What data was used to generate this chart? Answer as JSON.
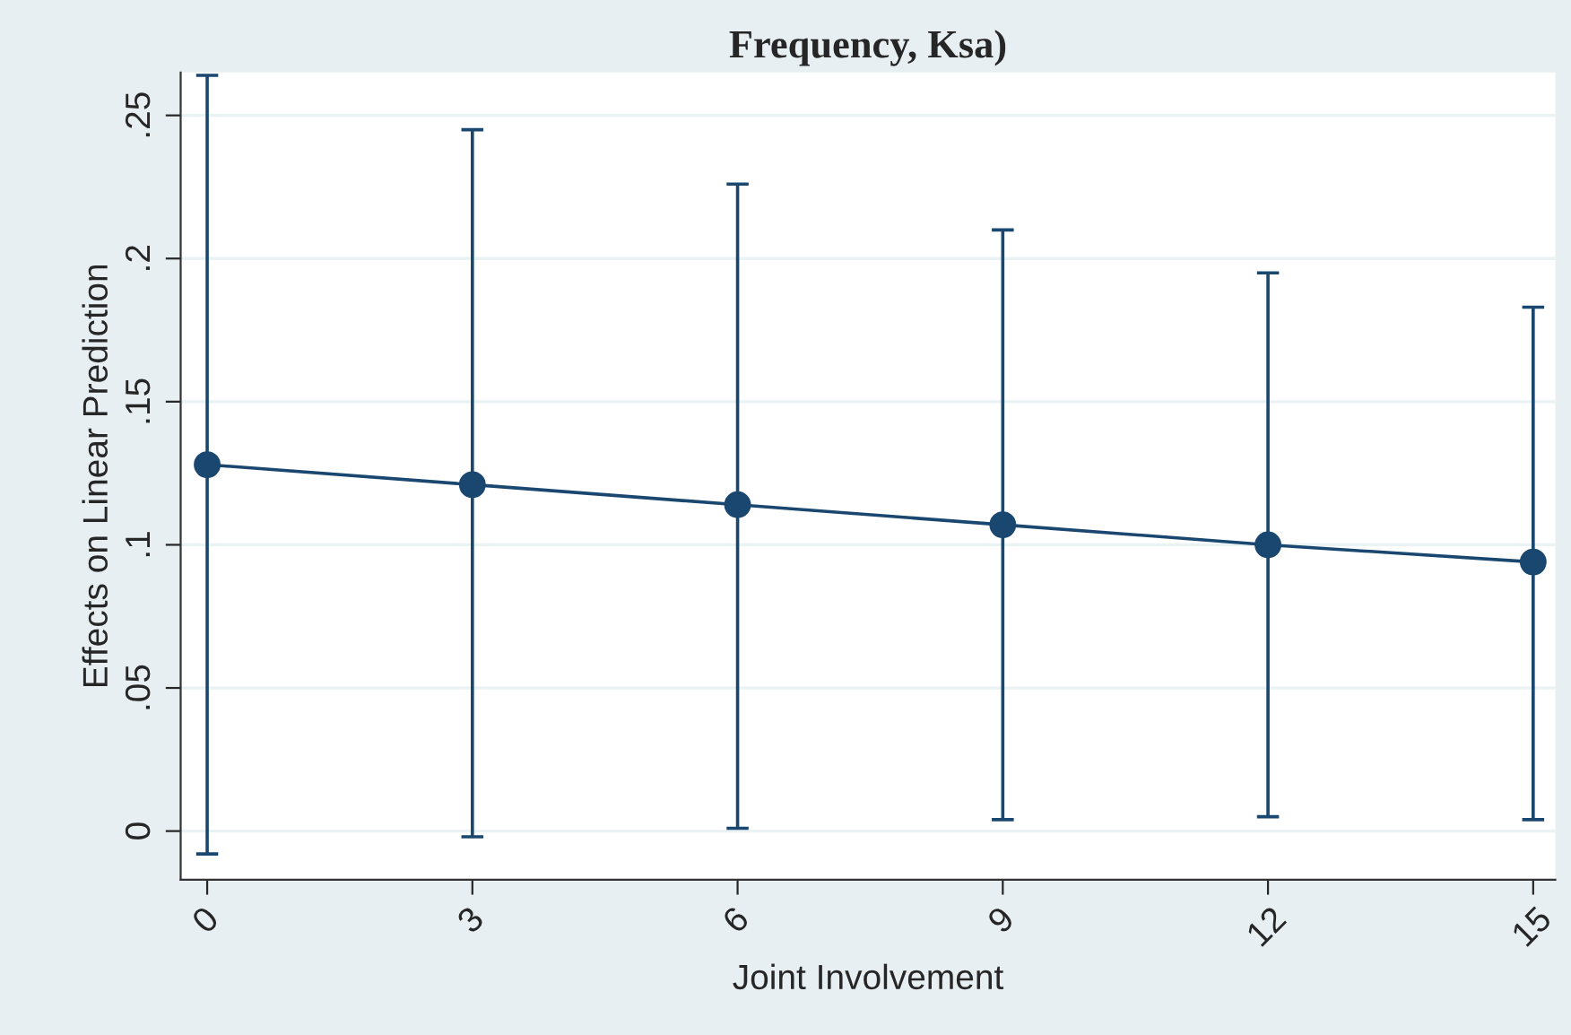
{
  "chart_data": {
    "type": "line",
    "title": "Frequency, Ksa)",
    "xlabel": "Joint Involvement",
    "ylabel": "Effects on Linear Prediction",
    "x": [
      0,
      3,
      6,
      9,
      12,
      15
    ],
    "series": [
      {
        "color": "#1a476f",
        "values": [
          0.128,
          0.121,
          0.114,
          0.107,
          0.1,
          0.094
        ],
        "errors": [
          [
            -0.008,
            0.264
          ],
          [
            -0.002,
            0.245
          ],
          [
            0.001,
            0.226
          ],
          [
            0.004,
            0.21
          ],
          [
            0.005,
            0.195
          ],
          [
            0.004,
            0.183
          ]
        ]
      }
    ],
    "xlim": [
      -0.3,
      15.25
    ],
    "ylim": [
      -0.017,
      0.265
    ],
    "xticks": [
      0,
      3,
      6,
      9,
      12,
      15
    ],
    "yticks": [
      {
        "value": 0,
        "label": "0"
      },
      {
        "value": 0.05,
        "label": ".05"
      },
      {
        "value": 0.1,
        "label": ".1"
      },
      {
        "value": 0.15,
        "label": ".15"
      },
      {
        "value": 0.2,
        "label": ".2"
      },
      {
        "value": 0.25,
        "label": ".25"
      }
    ],
    "grid": "y",
    "marker": "circle",
    "line_style": "solid"
  }
}
